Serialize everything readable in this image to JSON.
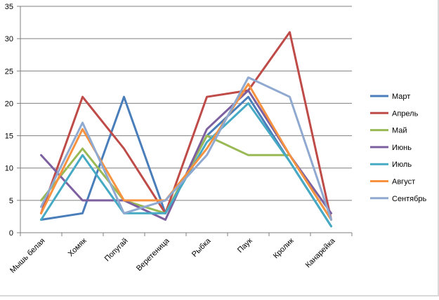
{
  "chart_data": {
    "type": "line",
    "title": "",
    "xlabel": "",
    "ylabel": "",
    "ylim": [
      0,
      35
    ],
    "yticks": [
      0,
      5,
      10,
      15,
      20,
      25,
      30,
      35
    ],
    "grid": true,
    "legend_position": "right",
    "categories": [
      "Мышь белая",
      "Хомяк",
      "Попугай",
      "Веретеница",
      "Рыбка",
      "Паук",
      "Кролик",
      "Канарейка"
    ],
    "series": [
      {
        "name": "Март",
        "color": "#4a7ebb",
        "values": [
          2,
          3,
          21,
          3,
          15,
          21,
          11,
          1
        ]
      },
      {
        "name": "Апрель",
        "color": "#be4b48",
        "values": [
          3,
          21,
          13,
          3,
          21,
          22,
          31,
          2
        ]
      },
      {
        "name": "Май",
        "color": "#98b954",
        "values": [
          5,
          13,
          5,
          3,
          15,
          12,
          12,
          2
        ]
      },
      {
        "name": "Июнь",
        "color": "#7d60a0",
        "values": [
          12,
          5,
          5,
          2,
          16,
          22,
          12,
          3
        ]
      },
      {
        "name": "Июль",
        "color": "#46aac5",
        "values": [
          2,
          12,
          3,
          3,
          14,
          20,
          11,
          1
        ]
      },
      {
        "name": "Август",
        "color": "#f69240",
        "values": [
          3,
          16,
          5,
          5,
          13,
          23,
          12,
          2
        ]
      },
      {
        "name": "Сентябрь",
        "color": "#8fa9d0",
        "values": [
          4,
          17,
          3,
          5,
          12,
          24,
          21,
          2
        ]
      }
    ]
  }
}
